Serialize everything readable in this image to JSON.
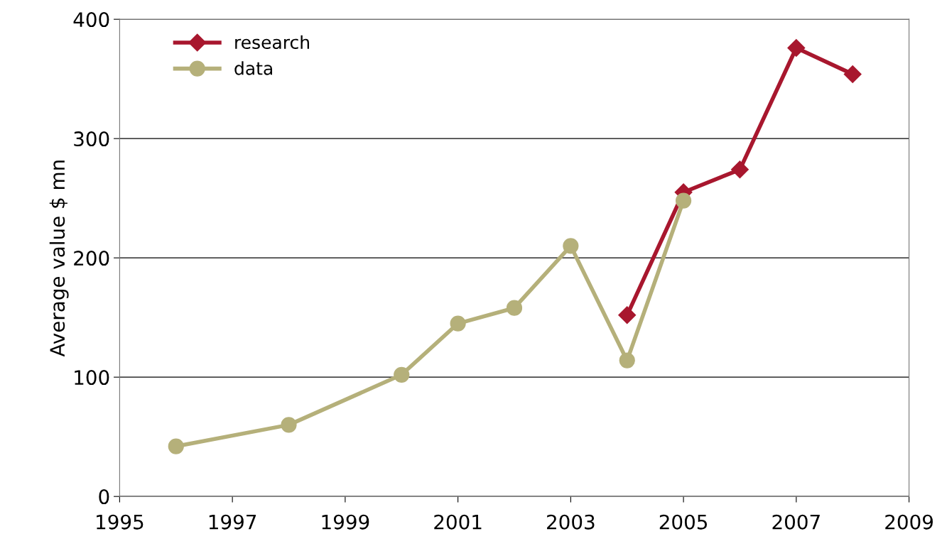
{
  "chart_data": {
    "type": "line",
    "ylabel": "Average value $ mn",
    "xlim": [
      1995,
      2009
    ],
    "xticks": [
      1995,
      1997,
      1999,
      2001,
      2003,
      2005,
      2007,
      2009
    ],
    "ylim": [
      0,
      400
    ],
    "yticks": [
      0,
      100,
      200,
      300,
      400
    ],
    "grid": "y",
    "legend": "top left",
    "series": [
      {
        "name": "research",
        "color": "#a8172e",
        "marker": "diamond",
        "x": [
          2004,
          2005,
          2006,
          2007,
          2008
        ],
        "values": [
          152,
          255,
          274,
          376,
          354
        ]
      },
      {
        "name": "data",
        "color": "#b5b07a",
        "marker": "circle",
        "x": [
          1996,
          1998,
          2000,
          2001,
          2002,
          2003,
          2004,
          2005
        ],
        "values": [
          42,
          60,
          102,
          145,
          158,
          210,
          114,
          248
        ]
      }
    ]
  }
}
